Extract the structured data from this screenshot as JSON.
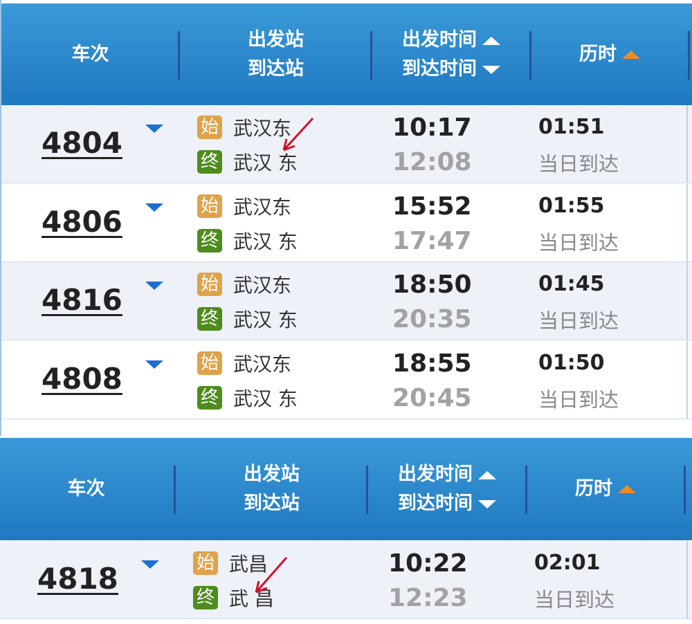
{
  "header": {
    "train": "车次",
    "station_dep": "出发站",
    "station_arr": "到达站",
    "time_dep": "出发时间",
    "time_arr": "到达时间",
    "duration": "历时"
  },
  "badges": {
    "start": "始",
    "end": "终"
  },
  "colors": {
    "header": "#2a8ad0",
    "sort_active": "#f08a24",
    "dropdown": "#1c6fd1",
    "annotation": "#d0102a"
  },
  "top_table": {
    "rows": [
      {
        "train": "4804",
        "from": "武汉东",
        "to": "武汉 东",
        "dep": "10:17",
        "arr": "12:08",
        "duration": "01:51",
        "arrival_note": "当日到达"
      },
      {
        "train": "4806",
        "from": "武汉东",
        "to": "武汉 东",
        "dep": "15:52",
        "arr": "17:47",
        "duration": "01:55",
        "arrival_note": "当日到达"
      },
      {
        "train": "4816",
        "from": "武汉东",
        "to": "武汉 东",
        "dep": "18:50",
        "arr": "20:35",
        "duration": "01:45",
        "arrival_note": "当日到达"
      },
      {
        "train": "4808",
        "from": "武汉东",
        "to": "武汉 东",
        "dep": "18:55",
        "arr": "20:45",
        "duration": "01:50",
        "arrival_note": "当日到达"
      }
    ]
  },
  "bottom_table": {
    "rows": [
      {
        "train": "4818",
        "from": "武昌",
        "to": "武 昌",
        "dep": "10:22",
        "arr": "12:23",
        "duration": "02:01",
        "arrival_note": "当日到达"
      }
    ]
  }
}
